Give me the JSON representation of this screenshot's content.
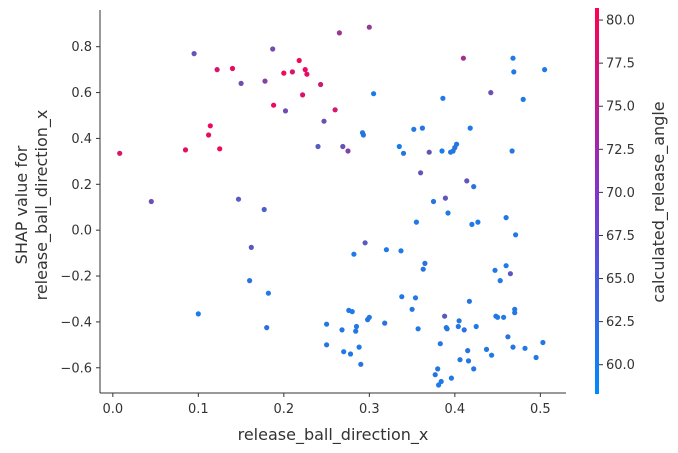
{
  "chart_data": {
    "type": "scatter",
    "title": "",
    "xlabel": "release_ball_direction_x",
    "ylabel_lines": [
      "SHAP value for",
      "release_ball_direction_x"
    ],
    "colorbar_label": "calculated_release_angle",
    "xlim": [
      -0.015,
      0.53
    ],
    "ylim": [
      -0.71,
      0.96
    ],
    "x_ticks": [
      0.0,
      0.1,
      0.2,
      0.3,
      0.4,
      0.5
    ],
    "x_tick_labels": [
      "0.0",
      "0.1",
      "0.2",
      "0.3",
      "0.4",
      "0.5"
    ],
    "y_ticks": [
      -0.6,
      -0.4,
      -0.2,
      0.0,
      0.2,
      0.4,
      0.6,
      0.8
    ],
    "y_tick_labels": [
      "−0.6",
      "−0.4",
      "−0.2",
      "0.0",
      "0.2",
      "0.4",
      "0.6",
      "0.8"
    ],
    "color_range": [
      58.3,
      80.7
    ],
    "color_ticks": [
      60.0,
      62.5,
      65.0,
      67.5,
      70.0,
      72.5,
      75.0,
      77.5,
      80.0
    ],
    "color_tick_labels": [
      "60.0",
      "62.5",
      "65.0",
      "67.5",
      "70.0",
      "72.5",
      "75.0",
      "77.5",
      "80.0"
    ],
    "colormap": [
      "#008afb",
      "#ff0052"
    ],
    "grid": false,
    "points": [
      [
        0.008,
        0.335,
        77.5
      ],
      [
        0.045,
        0.125,
        68.0
      ],
      [
        0.085,
        0.35,
        78.5
      ],
      [
        0.095,
        0.77,
        67.0
      ],
      [
        0.1,
        -0.365,
        60.5
      ],
      [
        0.112,
        0.415,
        78.5
      ],
      [
        0.114,
        0.455,
        79.0
      ],
      [
        0.122,
        0.7,
        77.0
      ],
      [
        0.125,
        0.355,
        79.0
      ],
      [
        0.14,
        0.705,
        79.0
      ],
      [
        0.147,
        0.135,
        66.0
      ],
      [
        0.15,
        0.64,
        68.0
      ],
      [
        0.16,
        -0.22,
        62.0
      ],
      [
        0.162,
        -0.075,
        66.5
      ],
      [
        0.177,
        0.09,
        65.0
      ],
      [
        0.178,
        0.65,
        70.0
      ],
      [
        0.18,
        -0.425,
        62.0
      ],
      [
        0.182,
        -0.275,
        61.0
      ],
      [
        0.187,
        0.79,
        68.5
      ],
      [
        0.188,
        0.545,
        79.0
      ],
      [
        0.2,
        0.685,
        79.5
      ],
      [
        0.202,
        0.52,
        68.0
      ],
      [
        0.21,
        0.69,
        77.0
      ],
      [
        0.218,
        0.74,
        79.5
      ],
      [
        0.222,
        0.59,
        77.5
      ],
      [
        0.225,
        0.7,
        79.0
      ],
      [
        0.227,
        0.68,
        78.5
      ],
      [
        0.24,
        0.365,
        66.0
      ],
      [
        0.243,
        0.635,
        76.0
      ],
      [
        0.247,
        0.475,
        68.0
      ],
      [
        0.25,
        -0.41,
        61.0
      ],
      [
        0.25,
        -0.5,
        61.5
      ],
      [
        0.26,
        0.525,
        77.0
      ],
      [
        0.265,
        0.86,
        72.0
      ],
      [
        0.268,
        -0.435,
        61.5
      ],
      [
        0.269,
        0.365,
        67.5
      ],
      [
        0.27,
        -0.53,
        61.0
      ],
      [
        0.275,
        0.345,
        70.0
      ],
      [
        0.276,
        -0.35,
        61.0
      ],
      [
        0.278,
        -0.54,
        61.5
      ],
      [
        0.28,
        -0.355,
        61.0
      ],
      [
        0.282,
        -0.105,
        61.0
      ],
      [
        0.284,
        -0.44,
        61.5
      ],
      [
        0.285,
        -0.42,
        61.0
      ],
      [
        0.288,
        -0.51,
        61.0
      ],
      [
        0.29,
        -0.585,
        62.0
      ],
      [
        0.292,
        0.425,
        61.0
      ],
      [
        0.293,
        0.415,
        62.0
      ],
      [
        0.295,
        -0.055,
        66.0
      ],
      [
        0.298,
        -0.39,
        62.0
      ],
      [
        0.3,
        0.885,
        71.0
      ],
      [
        0.3,
        -0.38,
        61.0
      ],
      [
        0.305,
        0.595,
        60.5
      ],
      [
        0.318,
        -0.405,
        62.0
      ],
      [
        0.32,
        -0.085,
        61.0
      ],
      [
        0.335,
        0.365,
        60.5
      ],
      [
        0.337,
        -0.09,
        61.0
      ],
      [
        0.338,
        -0.29,
        61.0
      ],
      [
        0.34,
        0.335,
        61.5
      ],
      [
        0.35,
        -0.345,
        61.5
      ],
      [
        0.352,
        0.44,
        61.0
      ],
      [
        0.354,
        -0.295,
        61.0
      ],
      [
        0.355,
        0.035,
        61.0
      ],
      [
        0.357,
        -0.43,
        61.0
      ],
      [
        0.36,
        0.25,
        67.0
      ],
      [
        0.362,
        0.445,
        61.5
      ],
      [
        0.363,
        -0.17,
        62.0
      ],
      [
        0.365,
        -0.145,
        62.0
      ],
      [
        0.37,
        0.34,
        67.0
      ],
      [
        0.375,
        0.125,
        61.5
      ],
      [
        0.377,
        -0.63,
        62.0
      ],
      [
        0.38,
        -0.605,
        61.5
      ],
      [
        0.381,
        -0.675,
        61.0
      ],
      [
        0.383,
        -0.495,
        61.5
      ],
      [
        0.384,
        -0.66,
        61.0
      ],
      [
        0.385,
        0.345,
        60.5
      ],
      [
        0.386,
        0.575,
        61.0
      ],
      [
        0.388,
        -0.375,
        66.5
      ],
      [
        0.389,
        0.14,
        67.0
      ],
      [
        0.39,
        -0.425,
        62.0
      ],
      [
        0.391,
        -0.43,
        61.5
      ],
      [
        0.392,
        0.075,
        61.0
      ],
      [
        0.395,
        0.34,
        61.5
      ],
      [
        0.396,
        -0.645,
        61.0
      ],
      [
        0.398,
        0.345,
        61.0
      ],
      [
        0.4,
        0.36,
        62.0
      ],
      [
        0.402,
        0.375,
        61.5
      ],
      [
        0.404,
        -0.42,
        61.5
      ],
      [
        0.405,
        -0.395,
        61.5
      ],
      [
        0.406,
        -0.565,
        61.5
      ],
      [
        0.41,
        0.75,
        73.0
      ],
      [
        0.411,
        -0.435,
        62.0
      ],
      [
        0.414,
        0.215,
        67.0
      ],
      [
        0.415,
        -0.525,
        62.0
      ],
      [
        0.416,
        -0.57,
        61.5
      ],
      [
        0.417,
        -0.31,
        62.0
      ],
      [
        0.418,
        0.445,
        61.0
      ],
      [
        0.42,
        0.025,
        61.0
      ],
      [
        0.422,
        0.19,
        62.0
      ],
      [
        0.422,
        -0.605,
        61.5
      ],
      [
        0.425,
        -0.42,
        61.0
      ],
      [
        0.427,
        0.035,
        61.0
      ],
      [
        0.437,
        -0.52,
        61.5
      ],
      [
        0.442,
        0.6,
        68.0
      ],
      [
        0.443,
        -0.545,
        61.0
      ],
      [
        0.447,
        -0.175,
        61.0
      ],
      [
        0.448,
        -0.375,
        61.5
      ],
      [
        0.45,
        -0.38,
        61.0
      ],
      [
        0.453,
        -0.22,
        61.0
      ],
      [
        0.457,
        -0.38,
        61.0
      ],
      [
        0.46,
        0.055,
        61.5
      ],
      [
        0.46,
        -0.155,
        61.0
      ],
      [
        0.462,
        -0.465,
        62.0
      ],
      [
        0.465,
        -0.19,
        66.5
      ],
      [
        0.467,
        0.345,
        61.5
      ],
      [
        0.468,
        -0.51,
        61.5
      ],
      [
        0.468,
        0.75,
        61.0
      ],
      [
        0.469,
        0.69,
        61.0
      ],
      [
        0.47,
        -0.36,
        61.5
      ],
      [
        0.47,
        -0.345,
        61.5
      ],
      [
        0.471,
        -0.02,
        61.0
      ],
      [
        0.48,
        0.57,
        61.0
      ],
      [
        0.482,
        -0.515,
        61.0
      ],
      [
        0.495,
        -0.555,
        61.0
      ],
      [
        0.503,
        -0.49,
        61.5
      ],
      [
        0.505,
        0.7,
        61.0
      ]
    ]
  }
}
